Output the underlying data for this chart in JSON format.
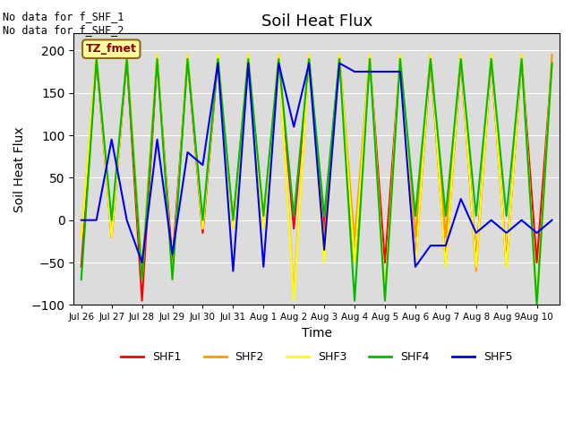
{
  "title": "Soil Heat Flux",
  "ylabel": "Soil Heat Flux",
  "xlabel": "Time",
  "ylim": [
    -100,
    220
  ],
  "yticks": [
    -100,
    -50,
    0,
    50,
    100,
    150,
    200
  ],
  "annotation_text": "No data for f_SHF_1\nNo data for f_SHF_2",
  "legend_box_text": "TZ_fmet",
  "legend_entries": [
    "SHF1",
    "SHF2",
    "SHF3",
    "SHF4",
    "SHF5"
  ],
  "colors": {
    "SHF1": "#FF0000",
    "SHF2": "#FF9900",
    "SHF3": "#FFFF00",
    "SHF4": "#00BB00",
    "SHF5": "#0000EE"
  },
  "background_color": "#DCDCDC",
  "xtick_labels": [
    "Jul 26",
    "Jul 27",
    "Jul 28",
    "Jul 29",
    "Jul 30",
    "Jul 31",
    "Aug 1",
    "Aug 2",
    "Aug 3",
    "Aug 4",
    "Aug 5",
    "Aug 6",
    "Aug 7",
    "Aug 8",
    "Aug 9",
    "Aug 10"
  ],
  "n_days": 16,
  "SHF1": [
    -55,
    190,
    -20,
    190,
    -95,
    190,
    -50,
    190,
    -15,
    190,
    -8,
    190,
    -5,
    190,
    -10,
    190,
    -10,
    190,
    -50,
    190,
    -50,
    190,
    -50,
    190,
    -50,
    190,
    -50,
    190,
    -50,
    190,
    -50,
    185
  ],
  "SHF2": [
    -20,
    195,
    -20,
    195,
    -60,
    195,
    -65,
    195,
    -10,
    195,
    -10,
    195,
    -10,
    195,
    -90,
    195,
    -25,
    195,
    -25,
    195,
    -90,
    195,
    -20,
    195,
    -20,
    195,
    -60,
    195,
    -55,
    195,
    -100,
    195
  ],
  "SHF3": [
    -20,
    195,
    -20,
    195,
    -70,
    195,
    -70,
    195,
    -10,
    195,
    -10,
    195,
    -10,
    195,
    -95,
    195,
    -50,
    195,
    -50,
    195,
    -90,
    195,
    -55,
    195,
    -55,
    195,
    -55,
    195,
    -55,
    195,
    -100,
    185
  ],
  "SHF4": [
    -70,
    190,
    0,
    190,
    -70,
    190,
    -70,
    190,
    0,
    190,
    0,
    190,
    5,
    190,
    5,
    190,
    5,
    190,
    -95,
    190,
    -95,
    190,
    5,
    190,
    5,
    190,
    5,
    190,
    5,
    190,
    -100,
    185
  ],
  "SHF5": [
    0,
    0,
    95,
    0,
    -50,
    95,
    -40,
    80,
    65,
    185,
    -60,
    185,
    -55,
    185,
    110,
    185,
    -35,
    185,
    175,
    175,
    175,
    175,
    -55,
    -30,
    -30,
    25,
    -15,
    0,
    -15,
    0,
    -15,
    0
  ],
  "x_ticks_pos": [
    0,
    2,
    4,
    6,
    8,
    10,
    12,
    14,
    16,
    18,
    20,
    22,
    24,
    26,
    28,
    30
  ]
}
